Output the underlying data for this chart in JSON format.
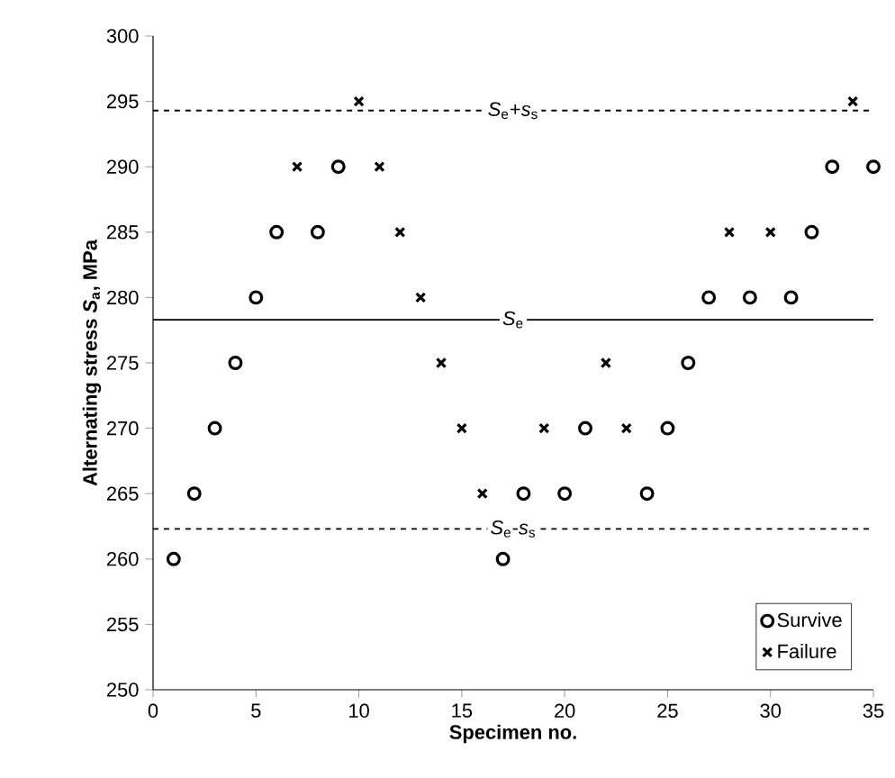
{
  "chart_data": {
    "type": "scatter",
    "xlabel": "Specimen no.",
    "ylabel": "Alternating stress *S*$_{a}$, MPa",
    "xlim": [
      0,
      35
    ],
    "xticks": [
      0,
      5,
      10,
      15,
      20,
      25,
      30,
      35
    ],
    "ylim": [
      250,
      300
    ],
    "yticks": [
      250,
      255,
      260,
      265,
      270,
      275,
      280,
      285,
      290,
      295,
      300
    ],
    "grid": false,
    "legend": "bottom right",
    "series": [
      {
        "name": "Survive",
        "color": "#000000",
        "marker": "circle",
        "x": [
          1,
          2,
          3,
          4,
          5,
          6,
          8,
          9,
          17,
          18,
          20,
          21,
          24,
          25,
          26,
          27,
          29,
          31,
          32,
          33,
          35
        ],
        "values": [
          260,
          265,
          270,
          275,
          280,
          285,
          285,
          290,
          260,
          265,
          265,
          270,
          265,
          270,
          275,
          280,
          280,
          280,
          285,
          290,
          290
        ]
      },
      {
        "name": "Failure",
        "color": "#000000",
        "marker": "cross",
        "x": [
          7,
          10,
          11,
          12,
          13,
          14,
          15,
          16,
          19,
          22,
          23,
          28,
          30,
          34
        ],
        "values": [
          290,
          295,
          290,
          285,
          280,
          275,
          270,
          265,
          270,
          275,
          270,
          285,
          285,
          295
        ]
      }
    ],
    "ref_lines": [
      {
        "axis": "y",
        "value": 294.3,
        "label": "*S*$_{e}$+*s*$_{s}$",
        "line_style": "dashed",
        "color": "#000000"
      },
      {
        "axis": "y",
        "value": 278.3,
        "label": "*S*$_{e}$",
        "line_style": "solid",
        "color": "#000000"
      },
      {
        "axis": "y",
        "value": 262.3,
        "label": "*S*$_{e}$-*s*$_{s}$",
        "line_style": "dashed",
        "color": "#000000"
      }
    ]
  }
}
